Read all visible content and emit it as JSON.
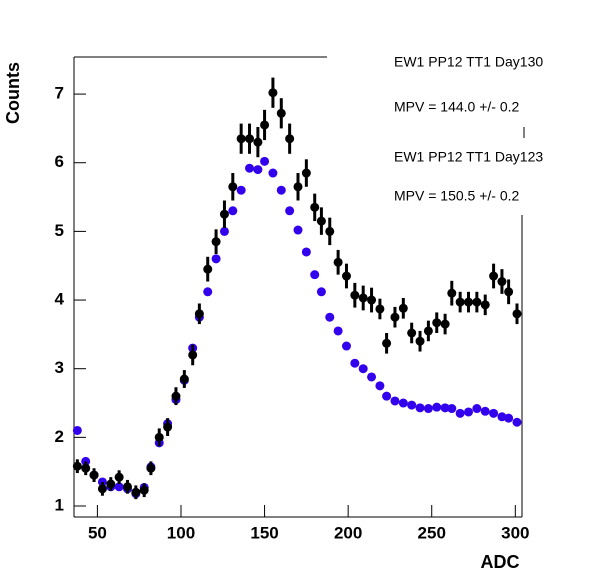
{
  "chart_data": {
    "type": "scatter",
    "x_label": "ADC",
    "y_label": "Counts",
    "x": [
      38,
      43,
      48,
      53,
      58,
      63,
      68,
      73,
      78,
      82,
      87,
      92,
      97,
      102,
      107,
      111,
      116,
      121,
      126,
      131,
      136,
      141,
      146,
      150,
      155,
      160,
      165,
      170,
      175,
      180,
      184,
      189,
      194,
      199,
      204,
      209,
      214,
      219,
      223,
      228,
      233,
      238,
      243,
      248,
      253,
      258,
      262,
      267,
      272,
      277,
      282,
      287,
      292,
      296,
      301
    ],
    "series": [
      {
        "name": "EW1 PP12 TT1 Day130",
        "mpv_label": "MPV = 144.0 +/- 0.2",
        "color": "#000000",
        "values": [
          1.58,
          1.55,
          1.45,
          1.25,
          1.32,
          1.42,
          1.28,
          1.2,
          1.23,
          1.55,
          2.0,
          2.15,
          2.6,
          2.85,
          3.2,
          3.8,
          4.45,
          4.85,
          5.25,
          5.65,
          6.35,
          6.35,
          6.3,
          6.55,
          7.02,
          6.72,
          6.35,
          5.65,
          5.85,
          5.35,
          5.15,
          5.0,
          4.55,
          4.35,
          4.07,
          4.03,
          4.0,
          3.87,
          3.37,
          3.75,
          3.88,
          3.52,
          3.4,
          3.55,
          3.67,
          3.65,
          4.1,
          3.97,
          3.97,
          3.97,
          3.93,
          4.35,
          4.27,
          4.12,
          3.8
        ],
        "errors": [
          0.1,
          0.1,
          0.1,
          0.1,
          0.1,
          0.1,
          0.1,
          0.1,
          0.1,
          0.1,
          0.13,
          0.13,
          0.13,
          0.13,
          0.15,
          0.15,
          0.18,
          0.18,
          0.2,
          0.2,
          0.22,
          0.22,
          0.22,
          0.22,
          0.22,
          0.22,
          0.22,
          0.2,
          0.2,
          0.2,
          0.2,
          0.2,
          0.18,
          0.18,
          0.18,
          0.18,
          0.18,
          0.15,
          0.15,
          0.15,
          0.15,
          0.15,
          0.15,
          0.15,
          0.15,
          0.15,
          0.18,
          0.15,
          0.15,
          0.15,
          0.15,
          0.18,
          0.18,
          0.18,
          0.15
        ]
      },
      {
        "name": "EW1 PP12 TT1 Day123",
        "mpv_label": "MPV = 150.5 +/- 0.2",
        "color": "#3300ee",
        "values": [
          2.1,
          1.65,
          1.45,
          1.35,
          1.28,
          1.28,
          1.25,
          1.18,
          1.27,
          1.57,
          1.92,
          2.2,
          2.55,
          2.83,
          3.3,
          3.75,
          4.12,
          4.6,
          5.0,
          5.3,
          5.6,
          5.92,
          5.9,
          6.02,
          5.85,
          5.6,
          5.3,
          5.02,
          4.7,
          4.37,
          4.12,
          3.75,
          3.55,
          3.33,
          3.08,
          3.0,
          2.88,
          2.75,
          2.6,
          2.53,
          2.5,
          2.47,
          2.43,
          2.42,
          2.44,
          2.43,
          2.42,
          2.35,
          2.37,
          2.42,
          2.38,
          2.35,
          2.3,
          2.28,
          2.22
        ]
      }
    ],
    "xlim": [
      36,
      304
    ],
    "ylim": [
      0.84,
      7.54
    ],
    "xticks": [
      50,
      100,
      150,
      200,
      250,
      300
    ],
    "yticks": [
      1,
      2,
      3,
      4,
      5,
      6,
      7
    ]
  }
}
